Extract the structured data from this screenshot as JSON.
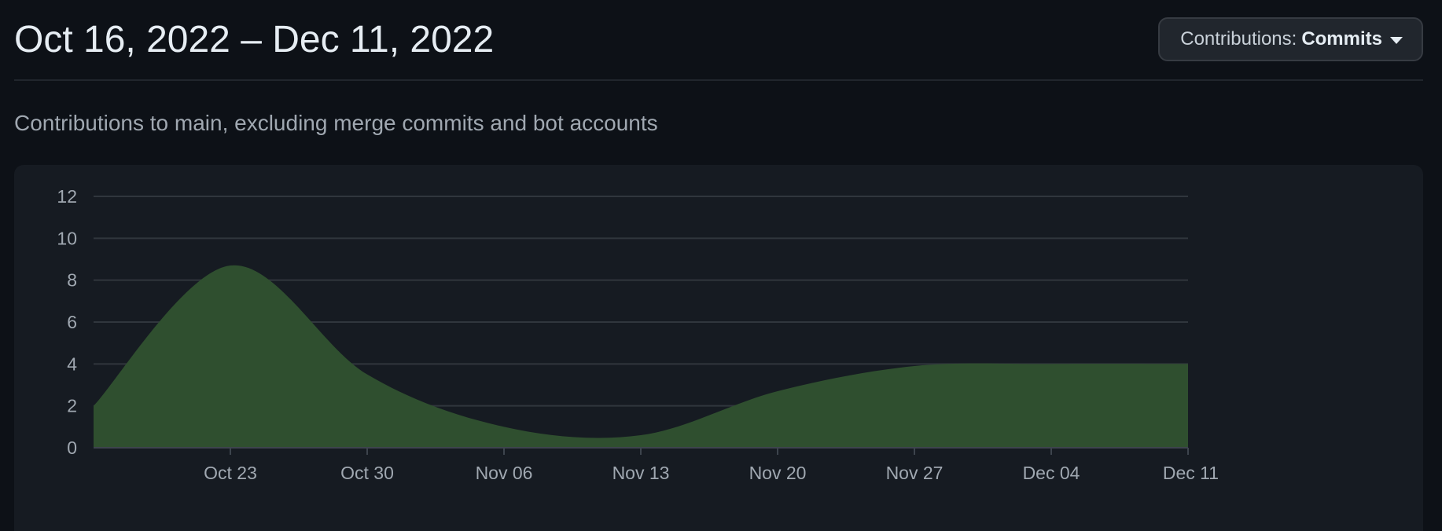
{
  "header": {
    "date_range": "Oct 16, 2022 – Dec 11, 2022",
    "contributions_button": {
      "label": "Contributions:",
      "value": "Commits",
      "icon": "caret-down-icon"
    }
  },
  "subtitle": "Contributions to main, excluding merge commits and bot accounts",
  "colors": {
    "background": "#0d1117",
    "panel": "#161b22",
    "area_fill": "#2f4f2f",
    "grid": "#30363d",
    "tick_text": "#a0a8b1"
  },
  "chart_data": {
    "type": "area",
    "title": "",
    "xlabel": "",
    "ylabel": "",
    "x": [
      "Oct 16",
      "Oct 23",
      "Oct 30",
      "Nov 06",
      "Nov 13",
      "Nov 20",
      "Nov 27",
      "Dec 04",
      "Dec 11"
    ],
    "x_tick_labels": [
      "Oct 23",
      "Oct 30",
      "Nov 06",
      "Nov 13",
      "Nov 20",
      "Nov 27",
      "Dec 04",
      "Dec 11"
    ],
    "values": [
      2,
      8.7,
      3.5,
      1,
      0.6,
      2.7,
      3.9,
      4,
      4
    ],
    "ylim": [
      0,
      12
    ],
    "y_ticks": [
      0,
      2,
      4,
      6,
      8,
      10,
      12
    ],
    "grid": true,
    "legend": "none",
    "curve": "smooth"
  }
}
